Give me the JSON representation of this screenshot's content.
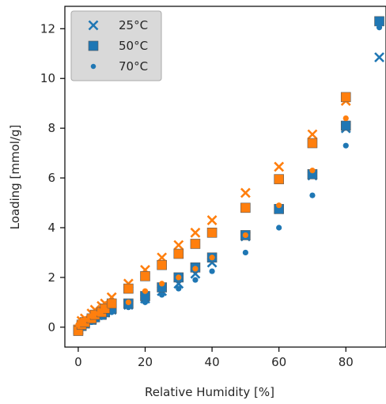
{
  "chart_data": {
    "type": "scatter",
    "title": "",
    "xlabel": "Relative Humidity [%]",
    "ylabel": "Loading [mmol/g]",
    "xlim": [
      -4,
      92
    ],
    "ylim": [
      -0.8,
      12.9
    ],
    "xticks": [
      0,
      20,
      40,
      60,
      80
    ],
    "yticks": [
      0,
      2,
      4,
      6,
      8,
      10,
      12
    ],
    "grid": false,
    "legend": {
      "placement": "top-left",
      "entries": [
        "25°C",
        "50°C",
        "70°C"
      ]
    },
    "series": [
      {
        "name": "25°C",
        "marker": "x",
        "color": "#1f77b4",
        "x": [
          0,
          1,
          2,
          4,
          5,
          7,
          8,
          10,
          15,
          20,
          25,
          30,
          35,
          40,
          50,
          60,
          70,
          80,
          90
        ],
        "y": [
          -0.1,
          0.05,
          0.15,
          0.3,
          0.4,
          0.5,
          0.6,
          0.7,
          0.9,
          1.15,
          1.45,
          1.75,
          2.15,
          2.6,
          3.65,
          4.75,
          6.1,
          8.0,
          10.85
        ]
      },
      {
        "name": "50°C",
        "marker": "s",
        "color": "#1f77b4",
        "x": [
          0,
          1,
          2,
          4,
          5,
          7,
          8,
          10,
          15,
          20,
          25,
          30,
          35,
          40,
          50,
          60,
          70,
          80,
          90
        ],
        "y": [
          -0.1,
          0.05,
          0.15,
          0.3,
          0.4,
          0.5,
          0.6,
          0.75,
          0.95,
          1.25,
          1.6,
          2.0,
          2.4,
          2.8,
          3.7,
          4.75,
          6.15,
          8.1,
          12.3
        ]
      },
      {
        "name": "70°C",
        "marker": "o",
        "color": "#1f77b4",
        "x": [
          0,
          1,
          2,
          4,
          5,
          7,
          8,
          10,
          15,
          20,
          25,
          30,
          35,
          40,
          50,
          60,
          70,
          80,
          90
        ],
        "y": [
          -0.1,
          0.0,
          0.1,
          0.2,
          0.3,
          0.4,
          0.5,
          0.6,
          0.8,
          1.0,
          1.3,
          1.55,
          1.9,
          2.25,
          3.0,
          4.0,
          5.3,
          7.3,
          12.05
        ]
      },
      {
        "name": "",
        "marker": "x",
        "color": "#ff7f0e",
        "x": [
          0,
          1,
          2,
          4,
          5,
          7,
          8,
          10,
          15,
          20,
          25,
          30,
          35,
          40,
          50,
          60,
          70,
          80
        ],
        "y": [
          -0.1,
          0.25,
          0.35,
          0.55,
          0.7,
          0.85,
          0.95,
          1.2,
          1.75,
          2.3,
          2.8,
          3.3,
          3.8,
          4.3,
          5.4,
          6.45,
          7.75,
          9.1
        ]
      },
      {
        "name": "",
        "marker": "s",
        "color": "#ff7f0e",
        "x": [
          0,
          1,
          2,
          4,
          5,
          7,
          8,
          10,
          15,
          20,
          25,
          30,
          35,
          40,
          50,
          60,
          70,
          80
        ],
        "y": [
          -0.15,
          0.1,
          0.2,
          0.35,
          0.5,
          0.6,
          0.75,
          0.95,
          1.55,
          2.05,
          2.5,
          2.95,
          3.35,
          3.8,
          4.8,
          5.95,
          7.4,
          9.25
        ]
      },
      {
        "name": "",
        "marker": "o",
        "color": "#ff7f0e",
        "x": [
          0,
          1,
          2,
          4,
          5,
          7,
          8,
          10,
          15,
          20,
          25,
          30,
          35,
          40,
          50,
          60,
          70,
          80
        ],
        "y": [
          0.1,
          0.25,
          0.3,
          0.45,
          0.55,
          0.65,
          0.7,
          0.9,
          1.0,
          1.45,
          1.75,
          2.0,
          2.35,
          2.8,
          3.7,
          4.9,
          6.3,
          8.4
        ]
      }
    ]
  }
}
